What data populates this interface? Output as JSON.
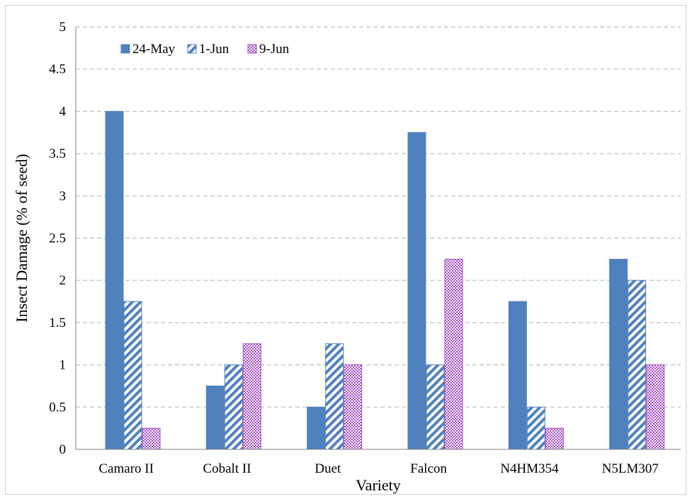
{
  "chart_data": {
    "type": "bar",
    "title": "",
    "xlabel": "Variety",
    "ylabel": "Insect Damage (% of seed)",
    "categories": [
      "Camaro II",
      "Cobalt II",
      "Duet",
      "Falcon",
      "N4HM354",
      "N5LM307"
    ],
    "series": [
      {
        "name": "24-May",
        "values": [
          4.0,
          0.75,
          0.5,
          3.75,
          1.75,
          2.25
        ],
        "color": "#4f81bd",
        "pattern": "solid"
      },
      {
        "name": "1-Jun",
        "values": [
          1.75,
          1.0,
          1.25,
          1.0,
          0.5,
          2.0
        ],
        "color": "#4f81bd",
        "pattern": "diagonal-stripes"
      },
      {
        "name": "9-Jun",
        "values": [
          0.25,
          1.25,
          1.0,
          2.25,
          0.25,
          1.0
        ],
        "color": "#a64ac9",
        "pattern": "checker"
      }
    ],
    "ylim": [
      0,
      5
    ],
    "yticks": [
      "0",
      "0.5",
      "1",
      "1.5",
      "2",
      "2.5",
      "3",
      "3.5",
      "4",
      "4.5",
      "5"
    ],
    "grid": "horizontal-dashed",
    "legend_position": "top-left"
  }
}
